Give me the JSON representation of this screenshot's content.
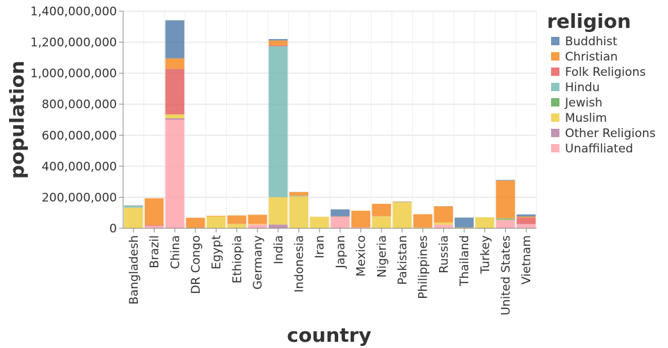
{
  "chart_data": {
    "type": "bar",
    "stacked": true,
    "xlabel": "country",
    "ylabel": "population",
    "ylim": [
      0,
      1400000000
    ],
    "yticks": [
      0,
      200000000,
      400000000,
      600000000,
      800000000,
      1000000000,
      1200000000,
      1400000000
    ],
    "ytick_labels": [
      "0",
      "200,000,000",
      "400,000,000",
      "600,000,000",
      "800,000,000",
      "1,000,000,000",
      "1,200,000,000",
      "1,400,000,000"
    ],
    "grid": true,
    "legend": {
      "title": "religion",
      "position": "right"
    },
    "categories": [
      "Bangladesh",
      "Brazil",
      "China",
      "DR Congo",
      "Egypt",
      "Ethiopia",
      "Germany",
      "India",
      "Indonesia",
      "Iran",
      "Japan",
      "Mexico",
      "Nigeria",
      "Pakistan",
      "Philippines",
      "Russia",
      "Thailand",
      "Turkey",
      "United States",
      "Vietnam"
    ],
    "series": [
      {
        "name": "Buddhist",
        "color": "#4c78a8",
        "values": [
          1000000,
          200000,
          245000000,
          0,
          0,
          0,
          200000,
          9000000,
          1000000,
          0,
          45000000,
          0,
          0,
          0,
          0,
          1000000,
          64000000,
          0,
          4000000,
          14000000
        ]
      },
      {
        "name": "Christian",
        "color": "#f58518",
        "values": [
          1000000,
          173000000,
          68000000,
          65000000,
          4000000,
          53000000,
          59000000,
          31000000,
          23000000,
          300000,
          2000000,
          108000000,
          78000000,
          3000000,
          85000000,
          104000000,
          600000,
          200000,
          243000000,
          8000000
        ]
      },
      {
        "name": "Folk Religions",
        "color": "#e45756",
        "values": [
          0,
          5000000,
          294000000,
          1000000,
          0,
          2000000,
          0,
          6000000,
          1000000,
          0,
          1000000,
          300000,
          2000000,
          0,
          1000000,
          200000,
          600000,
          0,
          600000,
          40000000
        ]
      },
      {
        "name": "Hindu",
        "color": "#72b7b2",
        "values": [
          13000000,
          0,
          0,
          0,
          0,
          0,
          100000,
          973000000,
          4000000,
          0,
          0,
          0,
          0,
          3000000,
          0,
          0,
          100000,
          0,
          2000000,
          0
        ]
      },
      {
        "name": "Jewish",
        "color": "#54a24b",
        "values": [
          0,
          100000,
          0,
          0,
          0,
          0,
          200000,
          0,
          0,
          0,
          0,
          0,
          0,
          0,
          0,
          200000,
          0,
          0,
          6000000,
          0
        ]
      },
      {
        "name": "Muslim",
        "color": "#eeca3b",
        "values": [
          133000000,
          0,
          25000000,
          1000000,
          77000000,
          28000000,
          4000000,
          177000000,
          205000000,
          74000000,
          0,
          0,
          78000000,
          167000000,
          5000000,
          14000000,
          4000000,
          71000000,
          3000000,
          200000
        ]
      },
      {
        "name": "Other Religions",
        "color": "#b279a2",
        "values": [
          0,
          500000,
          9000000,
          0,
          0,
          0,
          0,
          24000000,
          100000,
          0,
          1000000,
          0,
          0,
          0,
          0,
          0,
          0,
          0,
          2000000,
          1000000
        ]
      },
      {
        "name": "Unaffiliated",
        "color": "#ff9da6",
        "values": [
          0,
          15000000,
          700000000,
          1000000,
          0,
          0,
          24000000,
          0,
          0,
          100000,
          73000000,
          5000000,
          0,
          0,
          0,
          23000000,
          0,
          0,
          51000000,
          26000000
        ]
      }
    ]
  }
}
